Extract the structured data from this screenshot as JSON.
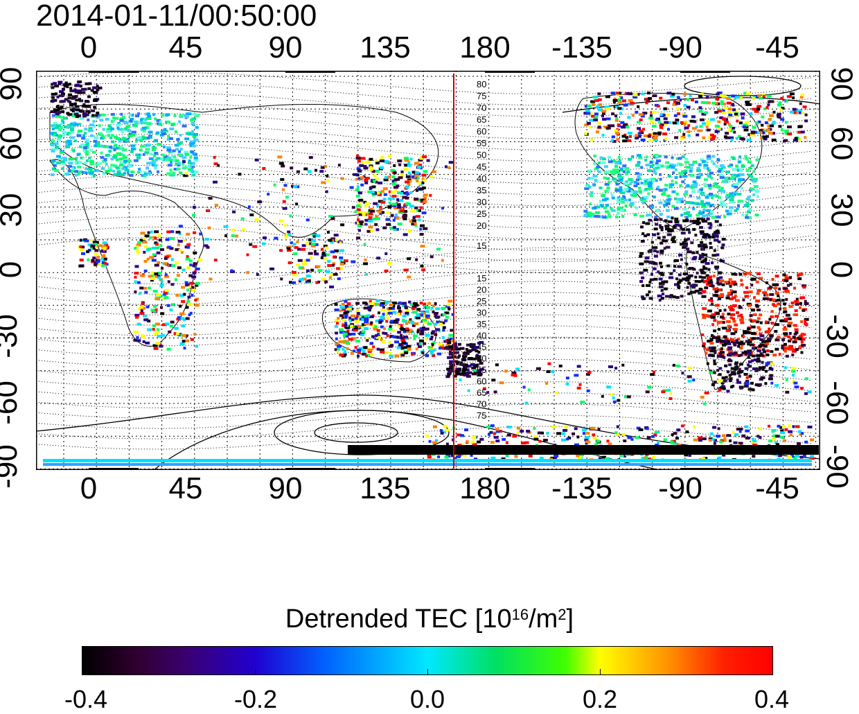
{
  "timestamp": "2014-01-11/00:50:00",
  "lon_ticks": [
    "0",
    "45",
    "90",
    "135",
    "180",
    "-135",
    "-90",
    "-45"
  ],
  "lat_ticks": [
    "90",
    "60",
    "30",
    "0",
    "-30",
    "-60",
    "-90"
  ],
  "contour_labels": {
    "north": [
      "80",
      "75",
      "70",
      "65",
      "60",
      "55",
      "50",
      "45",
      "40",
      "35",
      "30",
      "25",
      "20",
      "15"
    ],
    "south": [
      "15",
      "20",
      "25",
      "30",
      "35",
      "40",
      "45",
      "50",
      "55",
      "60",
      "65",
      "70",
      "75"
    ]
  },
  "colorbar": {
    "title_prefix": "Detrended TEC  [10",
    "title_sup1": "16",
    "title_mid": "/m",
    "title_sup2": "2",
    "title_suffix": "]",
    "labels": [
      "-0.4",
      "-0.2",
      "0.0",
      "0.2",
      "0.4"
    ]
  },
  "colors": {
    "meridian_line": "#d00000",
    "contour": "#000000"
  }
}
